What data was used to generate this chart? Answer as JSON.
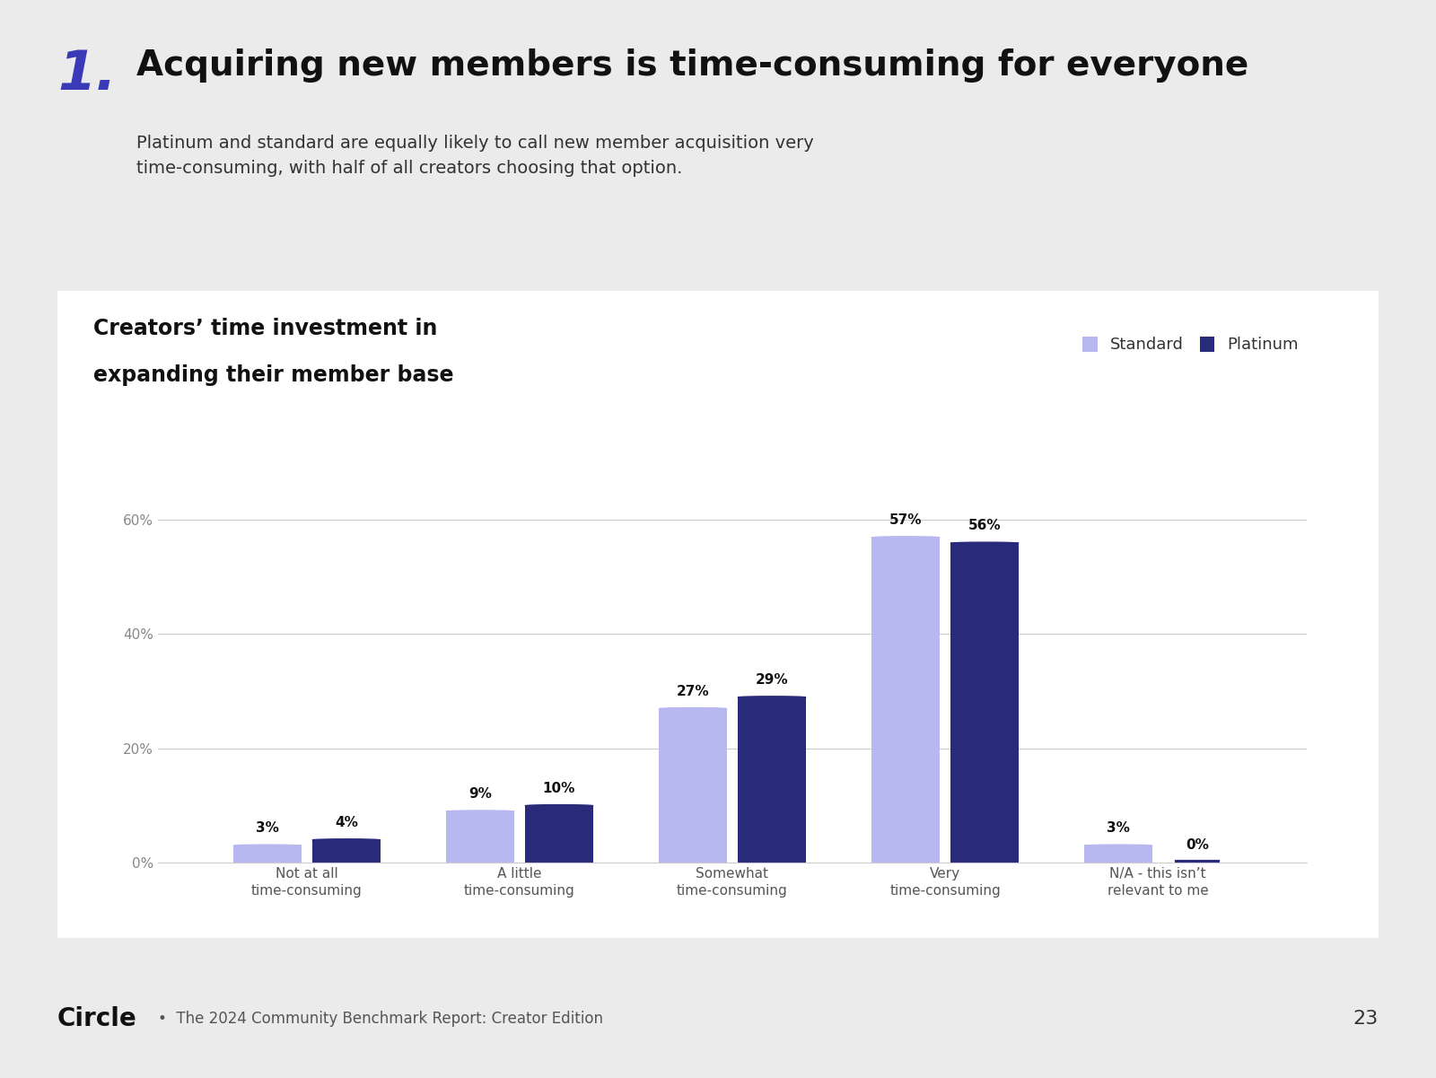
{
  "title_number": "1.",
  "title_number_color": "#3a3ab8",
  "title": "Acquiring new members is time-consuming for everyone",
  "subtitle": "Platinum and standard are equally likely to call new member acquisition very\ntime-consuming, with half of all creators choosing that option.",
  "chart_title_line1": "Creators’ time investment in",
  "chart_title_line2": "expanding their member base",
  "background_color": "#ebebeb",
  "chart_bg_color": "#ffffff",
  "categories": [
    "Not at all\ntime-consuming",
    "A little\ntime-consuming",
    "Somewhat\ntime-consuming",
    "Very\ntime-consuming",
    "N/A - this isn’t\nrelevant to me"
  ],
  "standard_values": [
    3,
    9,
    27,
    57,
    3
  ],
  "platinum_values": [
    4,
    10,
    29,
    56,
    0
  ],
  "standard_color": "#b8b8f0",
  "platinum_color": "#2a2a7a",
  "legend_standard": "Standard",
  "legend_platinum": "Platinum",
  "ylabel_ticks": [
    0,
    20,
    40,
    60
  ],
  "ylabel_labels": [
    "0%",
    "20%",
    "40%",
    "60%"
  ],
  "footer_logo": "Circle",
  "footer_text": "•  The 2024 Community Benchmark Report: Creator Edition",
  "footer_page": "23",
  "title_fontsize": 28,
  "subtitle_fontsize": 14,
  "chart_title_fontsize": 17,
  "bar_width": 0.32,
  "ylim_max": 68
}
